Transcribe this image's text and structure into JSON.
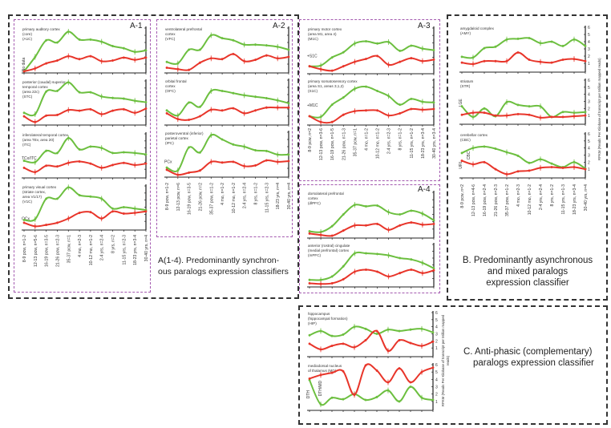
{
  "colors": {
    "green": "#6cbf3f",
    "red": "#e8352a",
    "purple": "#a45ab0",
    "dashed": "#333333"
  },
  "sections": {
    "A1": {
      "tag": "A-1"
    },
    "A2": {
      "tag": "A-2"
    },
    "A3": {
      "tag": "A-3"
    },
    "A4": {
      "tag": "A-4"
    },
    "A_caption": {
      "line1": "A(1-4).    Predominantly synchron-",
      "line2": "ous paralogs expression classifiers"
    },
    "B_caption": {
      "line1": "B.  Predominantly asynchronous",
      "line2": "and mixed paralogs",
      "line3": "expression classifier"
    },
    "C_caption": {
      "line1": "C.  Anti-phasic (complementary)",
      "line2": "paralogs expression classifier"
    }
  },
  "y_axis_label": "RPKM (Reads Per Kilobase of transcript per Million mapped reads)",
  "x_labels": {
    "A1": [
      "8-9 pcw, n=1-2",
      "12-13 pcw, n=5-6",
      "16-19 pcw, n=3-5",
      "21-26 pcw, n=2-3",
      "35-37 pcw, n=1",
      "4 mo, n=2-3",
      "10-12 mo, n=1-2",
      "2-4 yrs, n=2-4",
      "8 yrs, n=2",
      "11-15 yrs, n=2-3",
      "18-23 yrs, n=3-4",
      "30-40 yrs, n=4"
    ],
    "A2": [
      "8-9 pcw, n=1-2",
      "12-13 pcw, n=6",
      "16-19 pcw, n=3-5",
      "21-26 pcw, n=2",
      "35-37 pcw, n=1-2",
      "4 mo, n=1-2",
      "10-12 mo, n=1-2",
      "2-4 yrs, n=2-4",
      "8 yrs, n=1-2",
      "11-15 yrs, n=2-3",
      "18-23 yrs, n=4",
      "30-40 yrs, n=4"
    ],
    "A3": [
      "8-9 pcw, n=2",
      "12-13 pcw, n=3-6",
      "16-19 pcw, n=1-5",
      "21-26 pcw, n=1-3",
      "35-37 pcw, n=1",
      "4 mo, n=1-2",
      "10-12 mo, n=1-2",
      "2-4 yrs, n=2-3",
      "8 yrs, n=1-2",
      "11-15 yrs, n=1-2",
      "18-23 yrs, n=3-4",
      "30-40 yrs, n=3-4"
    ],
    "B": [
      "8-9 pcw, n=2",
      "12-13 pcw, n=4-6",
      "16-19 pcw, n=2-4",
      "21-26 pcw, n=2-3",
      "35-37 pcw, n=1-2",
      "4 mo, n=2-3",
      "10-12 mo, n=1-2",
      "2-4 yrs, n=2-4",
      "8 yrs, n=1-2",
      "11-15 yrs, n=1-3",
      "18-23 yrs, n=3-4",
      "30-40 yrs, n=4"
    ]
  },
  "chart_data": [
    {
      "id": "AUC",
      "type": "line",
      "title": [
        "primary auditory cortex",
        "(core)",
        "(A1C)"
      ],
      "side_labels": [
        "No data"
      ],
      "ylim": [
        0,
        6
      ],
      "series": [
        {
          "name": "green",
          "values": [
            0,
            2,
            4.3,
            4,
            5.5,
            4.4,
            4.4,
            4.1,
            3.5,
            3.2,
            2.7,
            2.9
          ]
        },
        {
          "name": "red",
          "values": [
            0,
            0.4,
            1.1,
            1.5,
            2.1,
            1.7,
            2.1,
            1.4,
            1.5,
            1.9,
            1.6,
            1.9
          ]
        }
      ]
    },
    {
      "id": "STC",
      "type": "line",
      "title": [
        "posterior (caudal) superior",
        "temporal cortex",
        "(area 22c)",
        "(STC)"
      ],
      "side_labels": [],
      "ylim": [
        0,
        6
      ],
      "series": [
        {
          "name": "green",
          "values": [
            1.5,
            1.3,
            4.5,
            4.6,
            5.8,
            4.4,
            4.4,
            3.8,
            3.6,
            3.5,
            3.2,
            3.0
          ]
        },
        {
          "name": "red",
          "values": [
            1,
            0.2,
            1.1,
            1.2,
            1.9,
            1.8,
            2,
            1.3,
            1.8,
            2,
            1.5,
            2.1
          ]
        }
      ]
    },
    {
      "id": "ITC",
      "type": "line",
      "title": [
        "inferolateral temporal cortex",
        "(area TEv, area 20)",
        "(ITC)"
      ],
      "side_labels": [
        "TCx/ITC"
      ],
      "ylim": [
        0,
        6
      ],
      "series": [
        {
          "name": "green",
          "values": [
            2.2,
            2,
            3.6,
            3.3,
            5.4,
            3.8,
            4.2,
            4.0,
            3.3,
            3.4,
            3.3,
            3.1
          ]
        },
        {
          "name": "red",
          "values": [
            1.2,
            0.6,
            1.5,
            1.4,
            1.9,
            2.1,
            1.8,
            1.2,
            1.6,
            1.9,
            1.6,
            1.8
          ]
        }
      ]
    },
    {
      "id": "V1C",
      "type": "line",
      "title": [
        "primary visual cortex",
        "(striate cortex,",
        "area V1/17)",
        "(V1C)"
      ],
      "side_labels": [
        "OCx"
      ],
      "ylim": [
        0,
        6
      ],
      "series": [
        {
          "name": "green",
          "values": [
            1.2,
            1.3,
            4.2,
            4.2,
            5.8,
            4.7,
            4.5,
            4.2,
            2.8,
            3.0,
            2.8,
            2.6
          ]
        },
        {
          "name": "red",
          "values": [
            0.8,
            0.3,
            0.5,
            0.8,
            1.4,
            2.2,
            2.3,
            1.4,
            2.4,
            2.1,
            2.2,
            2.4
          ]
        }
      ]
    },
    {
      "id": "VFC",
      "type": "line",
      "title": [
        "ventrolateral prefrontal",
        "cortex",
        "(VFC)"
      ],
      "side_labels": [],
      "ylim": [
        0,
        6
      ],
      "series": [
        {
          "name": "green",
          "values": [
            1.3,
            1.1,
            3.0,
            3.0,
            5.0,
            4.6,
            4.3,
            3.7,
            3.7,
            3.6,
            3.4,
            3.0
          ]
        },
        {
          "name": "red",
          "values": [
            0.5,
            0.3,
            0.2,
            1.2,
            1.8,
            1.7,
            2.4,
            1.4,
            1.6,
            2.2,
            1.8,
            2.0
          ]
        }
      ]
    },
    {
      "id": "OFC",
      "type": "line",
      "title": [
        "orbital frontal",
        "cortex",
        "(OFC)"
      ],
      "side_labels": [],
      "ylim": [
        0,
        6
      ],
      "series": [
        {
          "name": "green",
          "values": [
            1.8,
            1.1,
            2.9,
            2.3,
            4.5,
            4.5,
            4.2,
            3.9,
            3.7,
            3.5,
            3.2,
            2.8
          ]
        },
        {
          "name": "red",
          "values": [
            1.4,
            0.6,
            0.5,
            1.0,
            1.9,
            1.8,
            2.1,
            1.4,
            1.8,
            2.2,
            2.2,
            2.2
          ]
        }
      ]
    },
    {
      "id": "IPC",
      "type": "line",
      "title": [
        "posteroventral (inferior)",
        "parietal cortex",
        "(IPC)"
      ],
      "side_labels": [
        "PCx"
      ],
      "ylim": [
        0,
        6
      ],
      "series": [
        {
          "name": "green",
          "values": [
            1.1,
            0.7,
            3.9,
            3.2,
            5.6,
            5.0,
            4.3,
            4.0,
            3.5,
            3.4,
            2.9,
            2.9
          ]
        },
        {
          "name": "red",
          "values": [
            0.8,
            0.1,
            0.4,
            0.7,
            1.9,
            1.8,
            1.9,
            1.3,
            1.4,
            2.1,
            1.9,
            2.0
          ]
        }
      ]
    },
    {
      "id": "M1C",
      "type": "line",
      "title": [
        "primary motor cortex",
        "(area M1, area 4)",
        "(M1C)"
      ],
      "side_labels": [
        "+S1C"
      ],
      "ylim": [
        0,
        6
      ],
      "series": [
        {
          "name": "green",
          "values": [
            0.8,
            0.9,
            2.0,
            2.7,
            3.9,
            4.2,
            3.9,
            4.1,
            2.9,
            3.6,
            3.2,
            3.0
          ]
        },
        {
          "name": "red",
          "values": [
            0.8,
            0.4,
            0.2,
            0.8,
            1.4,
            1.8,
            2.2,
            1.0,
            1.4,
            1.9,
            1.5,
            1.7
          ]
        }
      ]
    },
    {
      "id": "S1C",
      "type": "line",
      "title": [
        "primary somatosensory cortex",
        "(area S1, areas 3,1,2)",
        "(S1C)"
      ],
      "side_labels": [
        "+M1C"
      ],
      "ylim": [
        0,
        6
      ],
      "series": [
        {
          "name": "green",
          "values": [
            1.0,
            0.9,
            2.6,
            3.6,
            4.8,
            5.1,
            4.5,
            3.8,
            2.6,
            3.4,
            3.0,
            2.9
          ]
        },
        {
          "name": "red",
          "values": [
            1.0,
            0.2,
            0.2,
            1.2,
            1.7,
            1.8,
            1.8,
            1.1,
            1.4,
            2.0,
            1.9,
            2.0
          ]
        }
      ]
    },
    {
      "id": "DFC",
      "type": "line",
      "title": [
        "dorsolateral prefrontal",
        "cortex",
        "(dlPFC)"
      ],
      "side_labels": [],
      "ylim": [
        0,
        6
      ],
      "series": [
        {
          "name": "green",
          "values": [
            0.7,
            0.6,
            1.4,
            3.0,
            4.3,
            4.1,
            4.2,
            3.3,
            3.0,
            3.5,
            3.1,
            2.2
          ]
        },
        {
          "name": "red",
          "values": [
            0.4,
            0.2,
            0.1,
            0.8,
            1.5,
            1.5,
            1.7,
            0.9,
            1.5,
            1.9,
            1.6,
            1.7
          ]
        }
      ]
    },
    {
      "id": "MFC",
      "type": "line",
      "title": [
        "anterior (rostral) cingulate",
        "(medial prefrontal) cortex",
        "(mPFC)"
      ],
      "side_labels": [],
      "ylim": [
        0,
        6
      ],
      "series": [
        {
          "name": "green",
          "values": [
            0.8,
            0.8,
            1.3,
            2.8,
            4.7,
            4.7,
            4.6,
            4.4,
            4.0,
            3.8,
            3.3,
            2.5
          ]
        },
        {
          "name": "red",
          "values": [
            0.3,
            0.2,
            0.3,
            0.9,
            2.0,
            2.3,
            2.0,
            1.3,
            1.8,
            2.3,
            1.8,
            2.2
          ]
        }
      ]
    },
    {
      "id": "AMY",
      "type": "line",
      "title": [
        "amygdaloid complex",
        "(AMY)"
      ],
      "side_labels": [],
      "ylim": [
        0,
        6
      ],
      "yticks": [
        "1",
        "2",
        "3",
        "4",
        "5",
        "6"
      ],
      "series": [
        {
          "name": "green",
          "values": [
            1.9,
            1.8,
            3.1,
            3.3,
            4.3,
            4.4,
            4.5,
            3.8,
            4.0,
            3.4,
            4.3,
            3.4
          ]
        },
        {
          "name": "red",
          "values": [
            1.1,
            0.9,
            1.3,
            1.3,
            1.3,
            2.5,
            1.5,
            1.2,
            1.1,
            1.5,
            1.6,
            1.3
          ]
        }
      ]
    },
    {
      "id": "STR",
      "type": "line",
      "title": [
        "striatum",
        "(STR)"
      ],
      "side_labels": [
        "LGE"
      ],
      "ylim": [
        0,
        6
      ],
      "yticks": [
        "1",
        "2",
        "3",
        "4",
        "5",
        "6"
      ],
      "series": [
        {
          "name": "green",
          "values": [
            2.3,
            0.8,
            2.0,
            0.9,
            2.9,
            2.5,
            2.3,
            2.3,
            0.8,
            1.5,
            1.4,
            1.5
          ]
        },
        {
          "name": "red",
          "values": [
            1.1,
            1.4,
            1.4,
            1.0,
            1.0,
            1.2,
            1.1,
            0.7,
            0.8,
            0.8,
            0.9,
            1.0
          ]
        }
      ]
    },
    {
      "id": "CBC",
      "type": "line",
      "title": [
        "cerebellar cortex",
        "(CBC)"
      ],
      "side_labels": [
        "URL",
        "CBC"
      ],
      "ylim": [
        0,
        6
      ],
      "yticks": [
        "1",
        "2",
        "3",
        "4",
        "5",
        "6"
      ],
      "series": [
        {
          "name": "green",
          "values": [
            3.3,
            4.0,
            4.2,
            3.9,
            3.4,
            2.9,
            1.9,
            2.4,
            1.8,
            1.3,
            2.0,
            1.1
          ]
        },
        {
          "name": "red",
          "values": [
            2.2,
            1.7,
            2.0,
            1.0,
            0.3,
            0.7,
            0.8,
            1.2,
            1.3,
            1.2,
            1.3,
            1.0
          ]
        }
      ]
    },
    {
      "id": "HIP",
      "type": "line",
      "title": [
        "hippocampus",
        "(hippocampal formation)",
        "(HIP)"
      ],
      "side_labels": [],
      "ylim": [
        0,
        6
      ],
      "yticks": [
        "1",
        "2",
        "3",
        "4",
        "5",
        "6"
      ],
      "series": [
        {
          "name": "green",
          "values": [
            2.8,
            3.4,
            2.7,
            2.9,
            4.0,
            3.7,
            3.0,
            3.6,
            3.4,
            3.6,
            3.7,
            3.2
          ]
        },
        {
          "name": "red",
          "values": [
            1.6,
            0.8,
            1.3,
            1.6,
            1.1,
            2.1,
            3.4,
            0.6,
            2.1,
            1.7,
            1.3,
            1.9
          ]
        }
      ]
    },
    {
      "id": "MD",
      "type": "line",
      "title": [
        "mediodorsal nucleus",
        "of thalamus (MD)"
      ],
      "side_labels": [
        "DTH",
        "DTH/MD"
      ],
      "ylim": [
        0,
        6
      ],
      "yticks": [
        "1",
        "2",
        "3",
        "4",
        "5",
        "6"
      ],
      "series": [
        {
          "name": "green",
          "values": [
            3.9,
            0.6,
            1.5,
            1.3,
            2.0,
            1.2,
            1.6,
            2.5,
            1.0,
            3.0,
            1.5,
            1.2
          ]
        },
        {
          "name": "red",
          "values": [
            4.1,
            4.6,
            4.9,
            5.1,
            1.9,
            5.9,
            5.2,
            3.6,
            5.5,
            3.6,
            5.0,
            5.6
          ]
        }
      ]
    }
  ]
}
